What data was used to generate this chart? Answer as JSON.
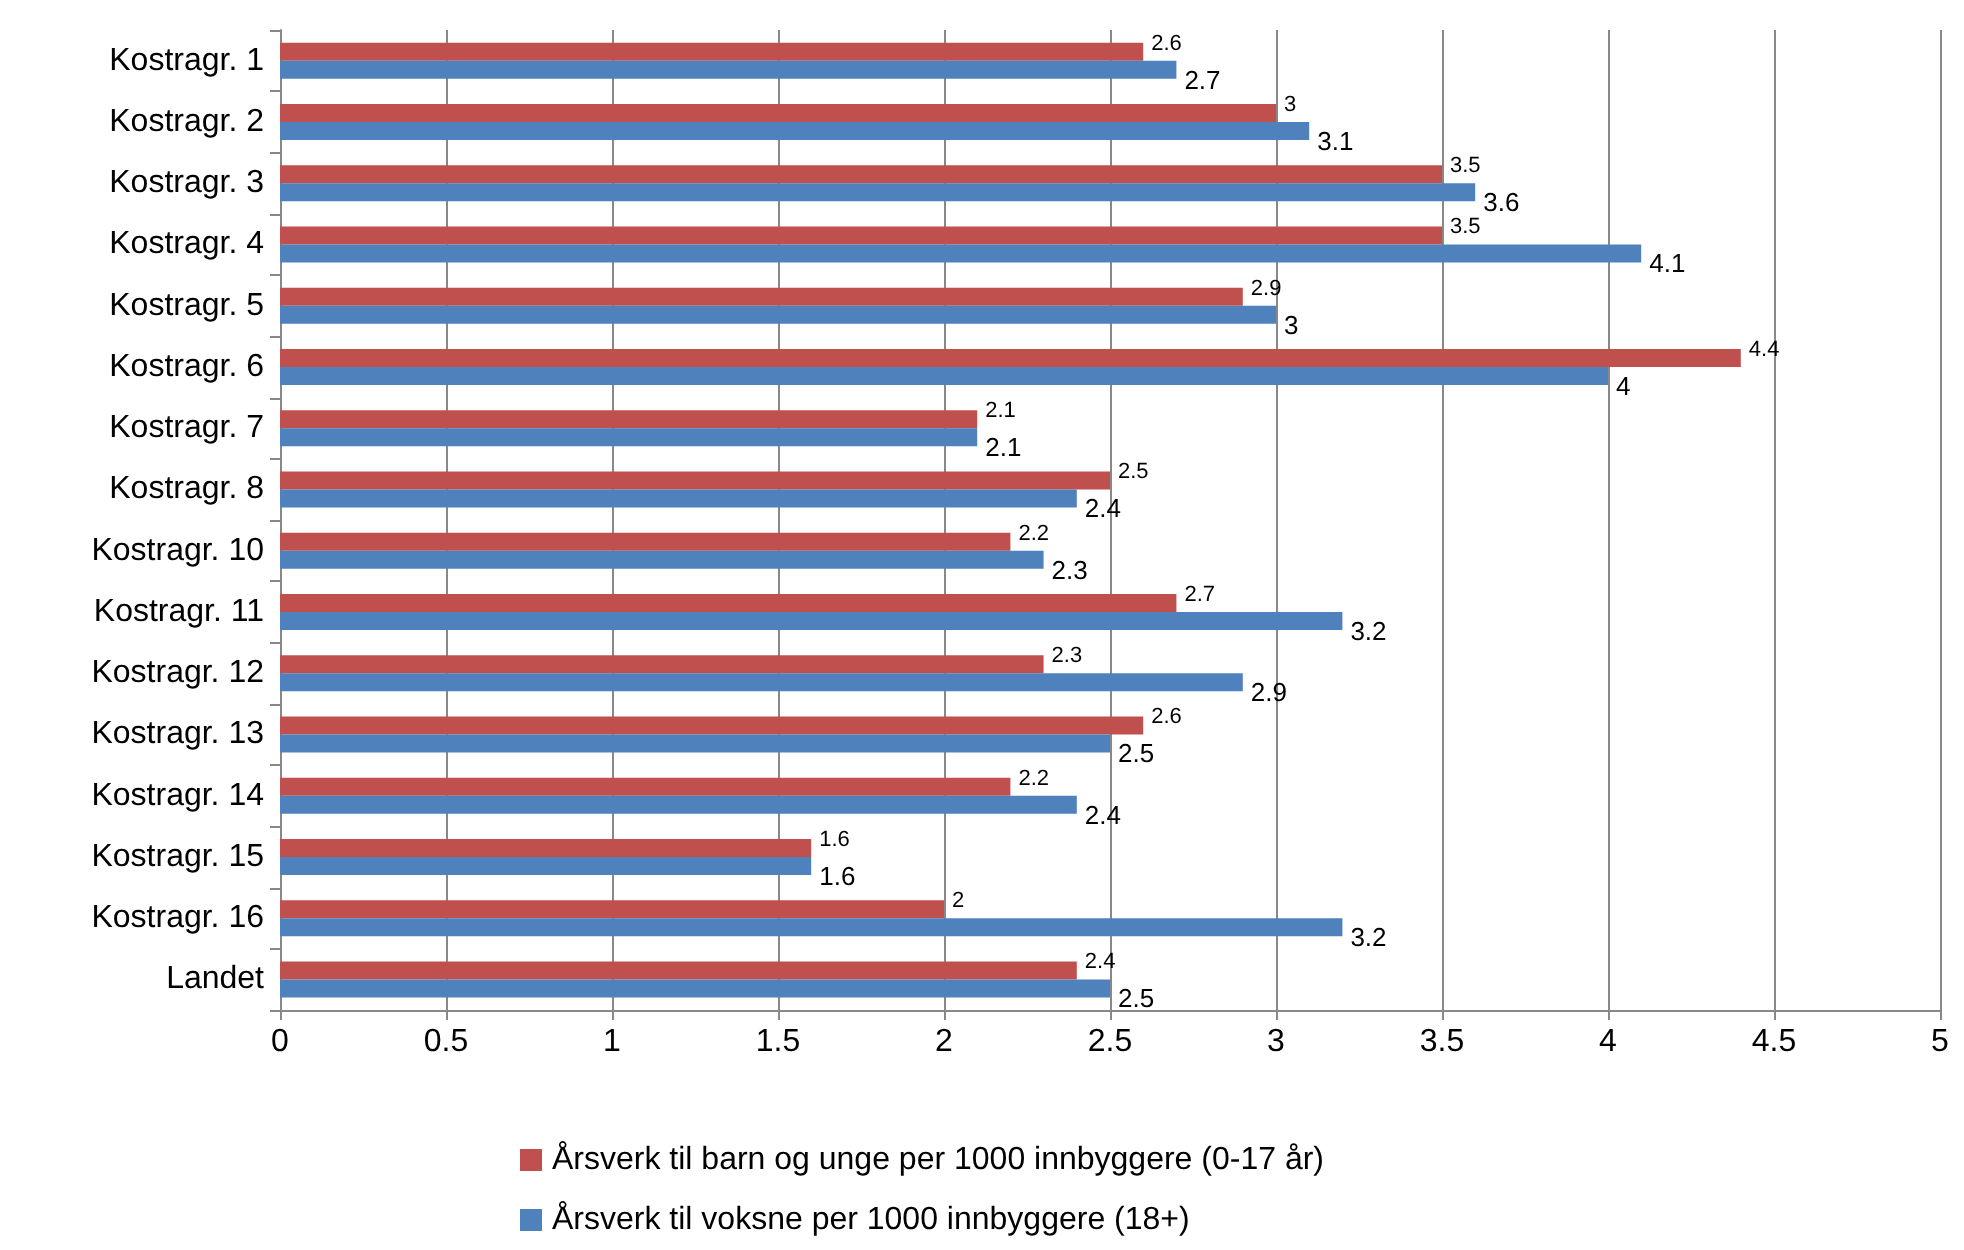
{
  "chart_data": {
    "type": "bar",
    "orientation": "horizontal",
    "categories": [
      "Kostragr. 1",
      "Kostragr. 2",
      "Kostragr. 3",
      "Kostragr. 4",
      "Kostragr. 5",
      "Kostragr. 6",
      "Kostragr. 7",
      "Kostragr. 8",
      "Kostragr. 10",
      "Kostragr. 11",
      "Kostragr. 12",
      "Kostragr. 13",
      "Kostragr. 14",
      "Kostragr. 15",
      "Kostragr. 16",
      "Landet"
    ],
    "series": [
      {
        "name": "Årsverk til barn og unge per 1000 innbyggere (0-17 år)",
        "color": "#c0504d",
        "values": [
          2.6,
          3,
          3.5,
          3.5,
          2.9,
          4.4,
          2.1,
          2.5,
          2.2,
          2.7,
          2.3,
          2.6,
          2.2,
          1.6,
          2,
          2.4
        ]
      },
      {
        "name": "Årsverk til voksne per 1000 innbyggere (18+)",
        "color": "#4f81bd",
        "values": [
          2.7,
          3.1,
          3.6,
          4.1,
          3,
          4,
          2.1,
          2.4,
          2.3,
          3.2,
          2.9,
          2.5,
          2.4,
          1.6,
          3.2,
          2.5
        ]
      }
    ],
    "xlim": [
      0,
      5
    ],
    "xticks": [
      0,
      0.5,
      1,
      1.5,
      2,
      2.5,
      3,
      3.5,
      4,
      4.5,
      5
    ],
    "grid": "x",
    "legend": "bottom",
    "data_labels": true
  }
}
